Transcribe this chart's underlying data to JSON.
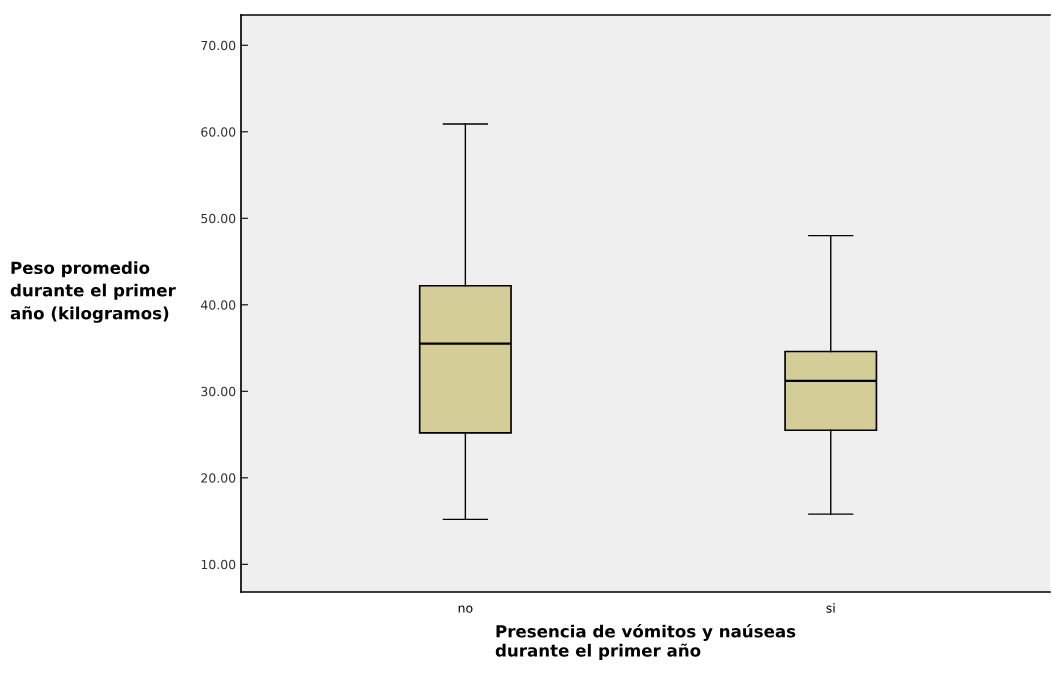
{
  "chart_data": {
    "type": "box",
    "xlabel": "Presencia de vómitos y naúseas\ndurante el primer año",
    "ylabel": "Peso promedio\ndurante el primer\naño (kilogramos)",
    "categories": [
      "no",
      "si"
    ],
    "series": [
      {
        "color": "#d4cd98",
        "boxes": [
          {
            "low": 15.2,
            "q1": 25.2,
            "median": 35.5,
            "q3": 42.2,
            "high": 60.9
          },
          {
            "low": 15.8,
            "q1": 25.5,
            "median": 31.2,
            "q3": 34.6,
            "high": 48.0
          }
        ]
      }
    ],
    "ylim": [
      6.8,
      73.5
    ],
    "yticks": [
      {
        "value": 10,
        "label": "10.00"
      },
      {
        "value": 20,
        "label": "20.00"
      },
      {
        "value": 30,
        "label": "30.00"
      },
      {
        "value": 40,
        "label": "40.00"
      },
      {
        "value": 50,
        "label": "50.00"
      },
      {
        "value": 60,
        "label": "60.00"
      },
      {
        "value": 70,
        "label": "70.00"
      }
    ],
    "grid": false,
    "legend": false
  }
}
